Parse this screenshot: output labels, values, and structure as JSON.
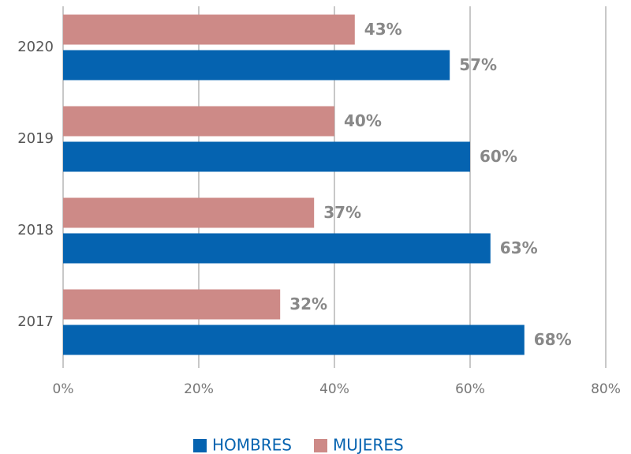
{
  "chart_data": {
    "type": "hbar",
    "categories": [
      "2020",
      "2019",
      "2018",
      "2017"
    ],
    "series": [
      {
        "name": "HOMBRES",
        "color": "#0563b0",
        "values": [
          57,
          60,
          63,
          68
        ],
        "value_labels": [
          "57%",
          "60%",
          "63%",
          "68%"
        ]
      },
      {
        "name": "MUJERES",
        "color": "#cd8a87",
        "values": [
          43,
          40,
          37,
          32
        ],
        "value_labels": [
          "43%",
          "40%",
          "37%",
          "32%"
        ]
      }
    ],
    "xlim": [
      0,
      80
    ],
    "xticks": [
      {
        "value": 0,
        "label": "0%"
      },
      {
        "value": 20,
        "label": "20%"
      },
      {
        "value": 40,
        "label": "40%"
      },
      {
        "value": 60,
        "label": "60%"
      },
      {
        "value": 80,
        "label": "80%"
      }
    ],
    "grid": true,
    "legend": "bottom"
  }
}
